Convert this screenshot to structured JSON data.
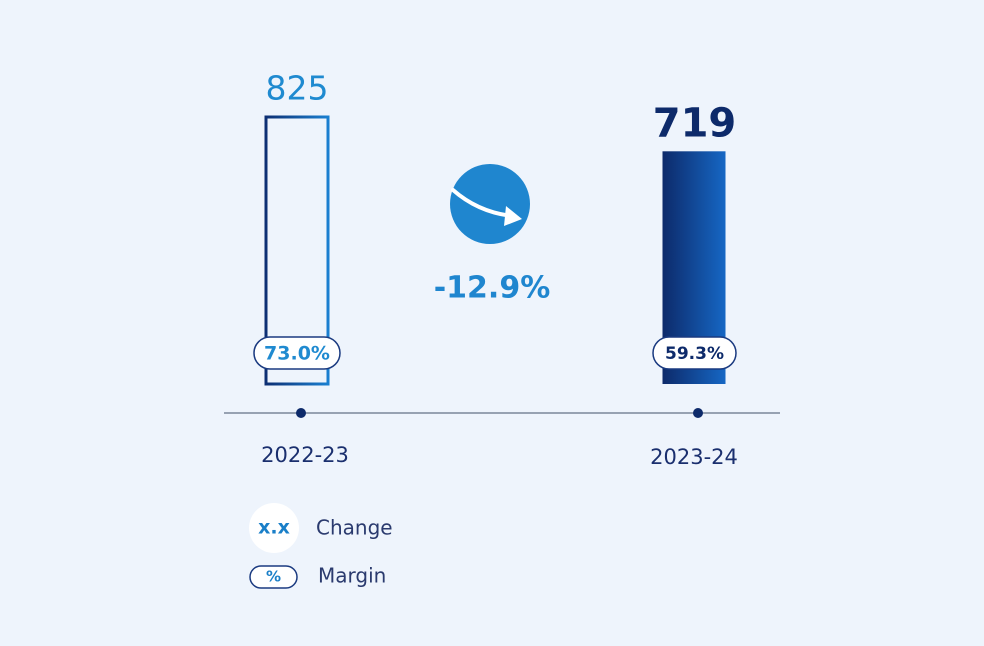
{
  "chart_data": {
    "type": "bar",
    "categories": [
      "2022-23",
      "2023-24"
    ],
    "values": [
      825,
      719
    ],
    "margins": [
      "73.0%",
      "59.3%"
    ],
    "change": "-12.9%",
    "legend": [
      {
        "symbol": "x.x",
        "label": "Change"
      },
      {
        "symbol": "%",
        "label": "Margin"
      }
    ]
  }
}
